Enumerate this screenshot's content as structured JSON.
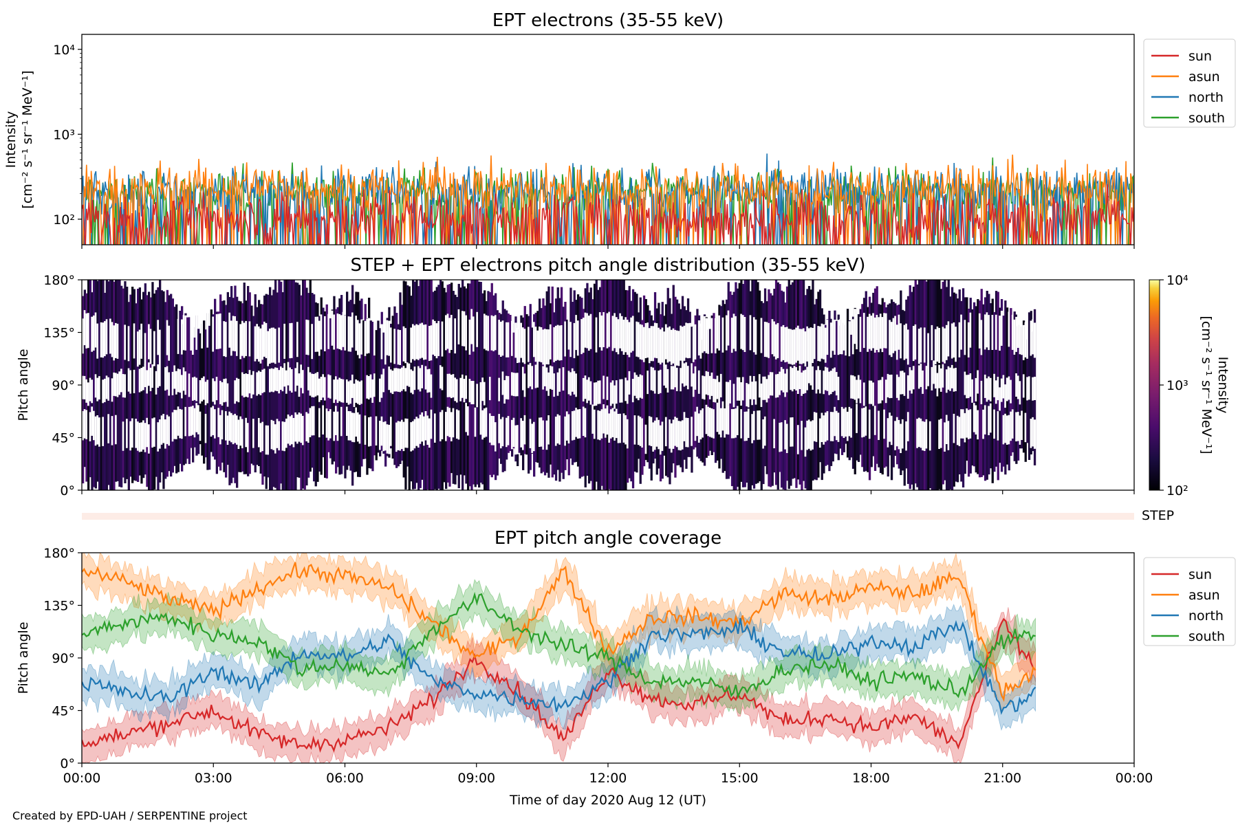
{
  "figure": {
    "footer": "Created by EPD-UAH / SERPENTINE project",
    "xlabel": "Time of day 2020 Aug 12 (UT)",
    "xticks": [
      "00:00",
      "03:00",
      "06:00",
      "09:00",
      "12:00",
      "15:00",
      "18:00",
      "21:00",
      "00:00"
    ]
  },
  "panel1": {
    "title": "EPT electrons (35-55 keV)",
    "ylabel_line1": "Intensity",
    "ylabel_line2": "[cm⁻² s⁻¹ sr⁻¹ MeV⁻¹]",
    "yticks": [
      "10²",
      "10³",
      "10⁴"
    ]
  },
  "panel2": {
    "title": "STEP + EPT electrons pitch angle distribution (35-55 keV)",
    "ylabel": "Pitch angle",
    "yticks": [
      "0°",
      "45°",
      "90°",
      "135°",
      "180°"
    ],
    "colorbar_label_line1": "Intensity",
    "colorbar_label_line2": "[cm⁻² s⁻¹ sr⁻¹ MeV⁻¹]",
    "colorbar_ticks": [
      "10²",
      "10³",
      "10⁴"
    ]
  },
  "step_label": "STEP",
  "panel3": {
    "title": "EPT pitch angle coverage",
    "ylabel": "Pitch angle",
    "yticks": [
      "0°",
      "45°",
      "90°",
      "135°",
      "180°"
    ]
  },
  "legend": [
    {
      "name": "sun",
      "color": "#d62728"
    },
    {
      "name": "asun",
      "color": "#ff7f0e"
    },
    {
      "name": "north",
      "color": "#1f77b4"
    },
    {
      "name": "south",
      "color": "#2ca02c"
    }
  ],
  "chart_data": [
    {
      "type": "line",
      "title": "EPT electrons (35-55 keV)",
      "xlabel": "Time of day 2020 Aug 12 (UT)",
      "ylabel": "Intensity [cm⁻² s⁻¹ sr⁻¹ MeV⁻¹]",
      "yscale": "log",
      "xlim": [
        "00:00",
        "24:00"
      ],
      "ylim": [
        50,
        15000
      ],
      "legend": "top-right, outside",
      "x": [
        "00:00",
        "02:00",
        "04:00",
        "06:00",
        "08:00",
        "10:00",
        "12:00",
        "14:00",
        "16:00",
        "18:00",
        "20:00",
        "22:00",
        "24:00"
      ],
      "series": [
        {
          "name": "sun",
          "color": "#d62728",
          "values": [
            110,
            100,
            115,
            105,
            110,
            100,
            120,
            105,
            110,
            100,
            115,
            105,
            110
          ]
        },
        {
          "name": "asun",
          "color": "#ff7f0e",
          "values": [
            220,
            240,
            260,
            230,
            250,
            240,
            250,
            235,
            245,
            230,
            250,
            240,
            260
          ]
        },
        {
          "name": "north",
          "color": "#1f77b4",
          "values": [
            210,
            200,
            230,
            210,
            220,
            215,
            230,
            220,
            225,
            210,
            220,
            215,
            230
          ]
        },
        {
          "name": "south",
          "color": "#2ca02c",
          "values": [
            200,
            190,
            220,
            200,
            210,
            205,
            215,
            205,
            215,
            200,
            210,
            205,
            220
          ]
        }
      ]
    },
    {
      "type": "heatmap",
      "title": "STEP + EPT electrons pitch angle distribution (35-55 keV)",
      "xlabel": "Time of day 2020 Aug 12 (UT)",
      "ylabel": "Pitch angle",
      "xlim": [
        "00:00",
        "24:00"
      ],
      "ylim": [
        0,
        180
      ],
      "colorbar": {
        "label": "Intensity [cm⁻² s⁻¹ sr⁻¹ MeV⁻¹]",
        "scale": "log",
        "range": [
          100,
          10000
        ],
        "colormap": "inferno"
      },
      "data_end": "21:45",
      "gaps_deg": [
        [
          40,
          65
        ],
        [
          80,
          100
        ],
        [
          115,
          145
        ]
      ]
    },
    {
      "type": "line",
      "title": "EPT pitch angle coverage",
      "xlabel": "Time of day 2020 Aug 12 (UT)",
      "ylabel": "Pitch angle",
      "xlim": [
        "00:00",
        "24:00"
      ],
      "ylim": [
        0,
        180
      ],
      "legend": "top-right, outside",
      "x": [
        "00:00",
        "01:00",
        "02:00",
        "03:00",
        "04:00",
        "05:00",
        "06:00",
        "07:00",
        "08:00",
        "09:00",
        "10:00",
        "11:00",
        "12:00",
        "13:00",
        "14:00",
        "15:00",
        "16:00",
        "17:00",
        "18:00",
        "19:00",
        "20:00",
        "21:00",
        "21:45"
      ],
      "series": [
        {
          "name": "sun",
          "color": "#d62728",
          "values": [
            15,
            25,
            35,
            45,
            25,
            15,
            20,
            30,
            55,
            90,
            60,
            20,
            80,
            55,
            50,
            60,
            35,
            40,
            30,
            40,
            15,
            120,
            80
          ]
        },
        {
          "name": "asun",
          "color": "#ff7f0e",
          "values": [
            165,
            155,
            140,
            130,
            150,
            165,
            160,
            150,
            120,
            90,
            110,
            165,
            95,
            125,
            125,
            120,
            145,
            140,
            150,
            145,
            160,
            60,
            80
          ]
        },
        {
          "name": "north",
          "color": "#1f77b4",
          "values": [
            70,
            60,
            55,
            80,
            65,
            95,
            90,
            105,
            70,
            60,
            55,
            50,
            70,
            110,
            110,
            115,
            95,
            90,
            105,
            100,
            120,
            45,
            60
          ]
        },
        {
          "name": "south",
          "color": "#2ca02c",
          "values": [
            110,
            120,
            125,
            110,
            105,
            80,
            85,
            75,
            115,
            140,
            115,
            100,
            90,
            70,
            70,
            60,
            80,
            85,
            70,
            75,
            60,
            105,
            110
          ]
        }
      ]
    }
  ]
}
